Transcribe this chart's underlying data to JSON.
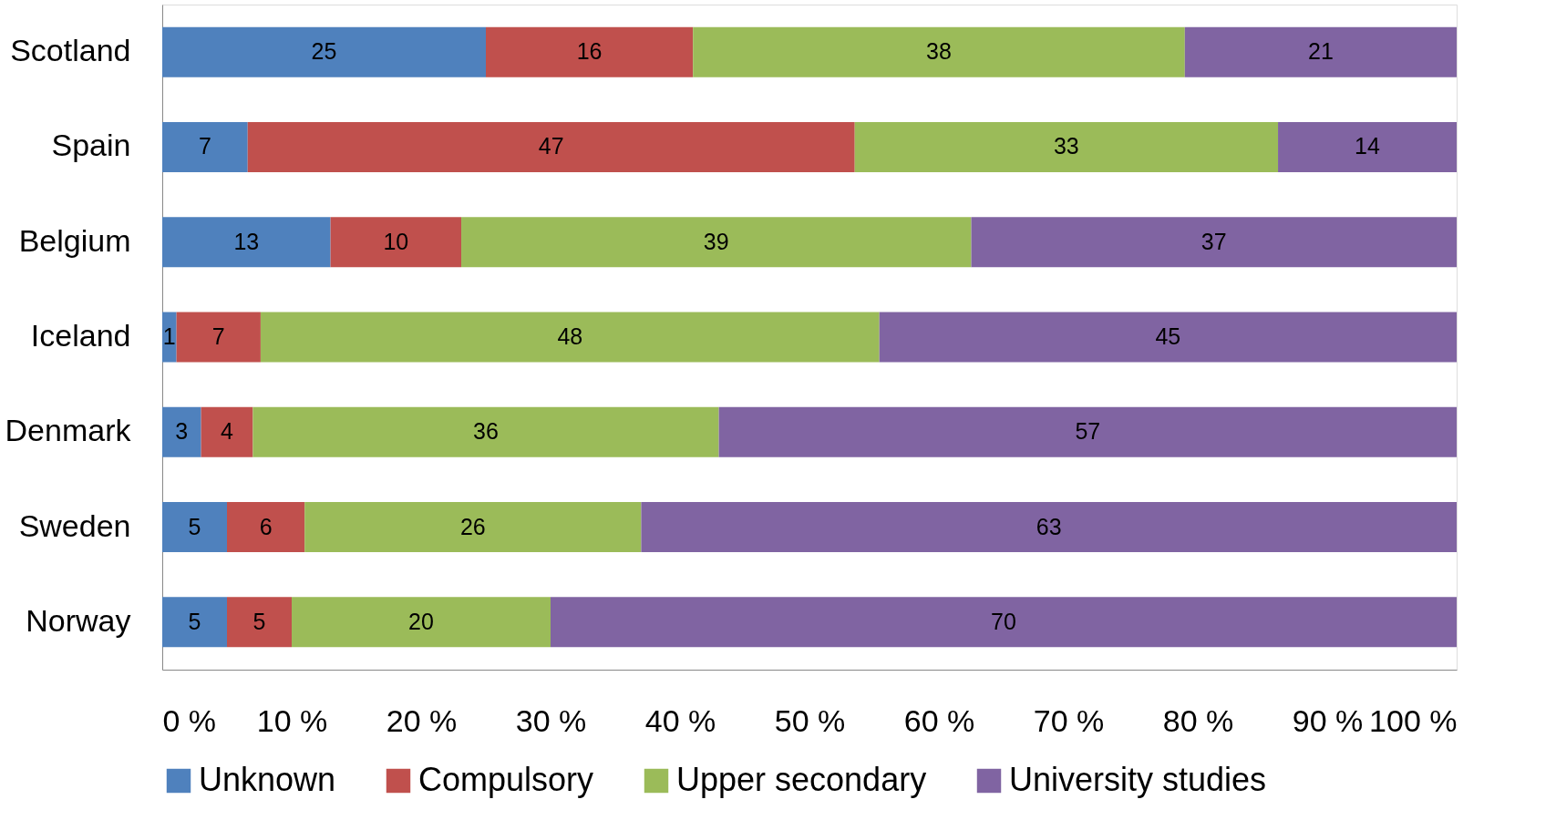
{
  "chart_data": {
    "type": "bar",
    "orientation": "horizontal",
    "stacked": true,
    "categories": [
      "Scotland",
      "Spain",
      "Belgium",
      "Iceland",
      "Denmark",
      "Sweden",
      "Norway"
    ],
    "series": [
      {
        "name": "Unknown",
        "color": "#4f81bd",
        "values": [
          25,
          6.6,
          13,
          1.1,
          3,
          5,
          5
        ],
        "value_labels": [
          "25",
          "7",
          "13",
          "1",
          "3",
          "5",
          "5"
        ]
      },
      {
        "name": "Compulsory",
        "color": "#c0504d",
        "values": [
          16,
          46.9,
          10.1,
          6.5,
          4,
          6,
          5
        ],
        "value_labels": [
          "16",
          "47",
          "10",
          "7",
          "4",
          "6",
          "5"
        ]
      },
      {
        "name": "Upper secondary",
        "color": "#9bbb59",
        "values": [
          38,
          32.7,
          39.4,
          47.8,
          36,
          26,
          20
        ],
        "value_labels": [
          "38",
          "33",
          "39",
          "48",
          "36",
          "26",
          "20"
        ]
      },
      {
        "name": "University studies",
        "color": "#8064a2",
        "values": [
          21,
          13.8,
          37.5,
          44.6,
          57,
          63,
          70
        ],
        "value_labels": [
          "21",
          "14",
          "37",
          "45",
          "57",
          "63",
          "70"
        ]
      }
    ],
    "xlim": [
      0,
      100
    ],
    "xticks": [
      {
        "value": 0,
        "label": "0 %"
      },
      {
        "value": 10,
        "label": "10 %"
      },
      {
        "value": 20,
        "label": "20 %"
      },
      {
        "value": 30,
        "label": "30 %"
      },
      {
        "value": 40,
        "label": "40 %"
      },
      {
        "value": 50,
        "label": "50 %"
      },
      {
        "value": 60,
        "label": "60 %"
      },
      {
        "value": 70,
        "label": "70 %"
      },
      {
        "value": 80,
        "label": "80 %"
      },
      {
        "value": 90,
        "label": "90 %"
      },
      {
        "value": 100,
        "label": "100 %"
      }
    ],
    "grid": false,
    "legend": "bottom"
  }
}
